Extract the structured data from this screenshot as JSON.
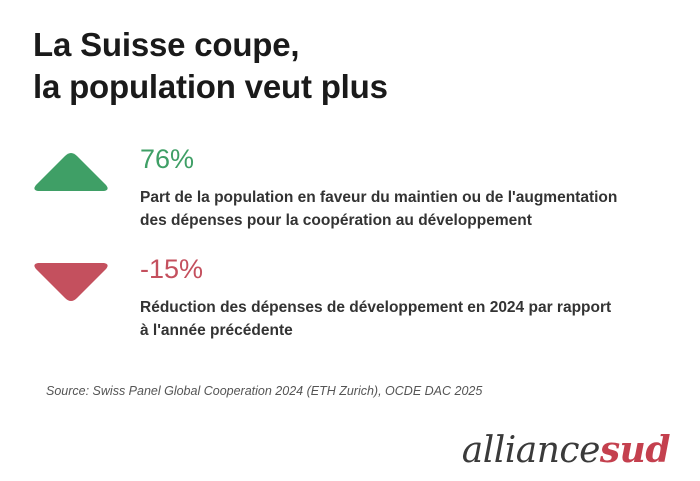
{
  "title": {
    "line1": "La Suisse coupe,",
    "line2": "la population veut plus"
  },
  "chart_data": {
    "type": "table",
    "title": "La Suisse coupe, la population veut plus",
    "items": [
      {
        "direction": "up",
        "value": 76,
        "value_label": "76%",
        "unit": "%",
        "description_line1": "Part de la population en faveur du maintien ou de l'augmentation",
        "description_line2": "des dépenses pour la coopération au développement",
        "color": "#3f9f66"
      },
      {
        "direction": "down",
        "value": -15,
        "value_label": "-15%",
        "unit": "%",
        "description_line1": "Réduction des dépenses de développement en 2024 par rapport",
        "description_line2": "à l'année précédente",
        "color": "#c4505e"
      }
    ]
  },
  "icons": {
    "up": "triangle-up-icon",
    "down": "triangle-down-icon"
  },
  "source": "Source: Swiss Panel Global Cooperation 2024 (ETH Zurich), OCDE DAC 2025",
  "logo": {
    "part1": "alliance",
    "part2": "sud",
    "color1": "#3a3a3a",
    "color2": "#c4404e"
  }
}
